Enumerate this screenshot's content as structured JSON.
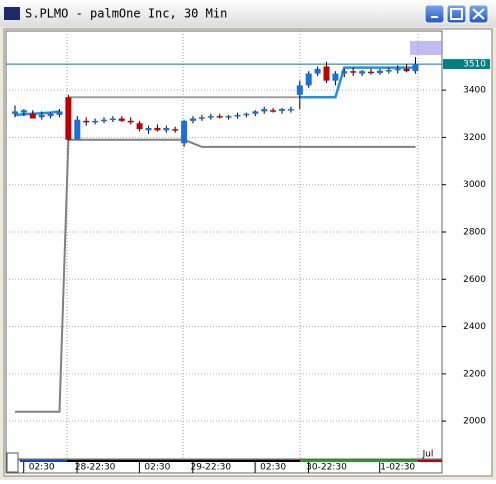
{
  "chart_data": {
    "type": "candlestick",
    "title": "S.PLMO - palmOne Inc, 30 Min",
    "categories": [
      null,
      null,
      null,
      "02:30",
      null,
      null,
      null,
      null,
      null,
      "28-22:30",
      null,
      null,
      null,
      null,
      null,
      null,
      "02:30",
      null,
      null,
      null,
      null,
      null,
      "29-22:30",
      null,
      null,
      null,
      null,
      null,
      null,
      "02:30",
      null,
      null,
      null,
      null,
      null,
      "30-22:30",
      null,
      null,
      null,
      null,
      null,
      null,
      null,
      "1-02:30",
      null,
      null
    ],
    "x_annotation": "Jul",
    "open": [
      3300,
      3305,
      3300,
      3285,
      3290,
      3295,
      3370,
      3190,
      3270,
      3265,
      3270,
      3275,
      3280,
      3270,
      3260,
      3230,
      3240,
      3230,
      3235,
      3175,
      3270,
      3280,
      3285,
      3290,
      3285,
      3290,
      3295,
      3300,
      3310,
      3315,
      3312,
      3315,
      3380,
      3420,
      3470,
      3500,
      3440,
      3470,
      3480,
      3470,
      3478,
      3472,
      3480,
      3485,
      3490,
      3480
    ],
    "high": [
      3335,
      3320,
      3315,
      3310,
      3305,
      3320,
      3380,
      3290,
      3285,
      3280,
      3285,
      3290,
      3290,
      3285,
      3270,
      3250,
      3255,
      3250,
      3245,
      3275,
      3290,
      3295,
      3300,
      3300,
      3295,
      3305,
      3305,
      3315,
      3330,
      3325,
      3325,
      3330,
      3440,
      3480,
      3500,
      3520,
      3480,
      3490,
      3495,
      3485,
      3490,
      3490,
      3495,
      3505,
      3510,
      3540
    ],
    "low": [
      3285,
      3290,
      3280,
      3275,
      3280,
      3285,
      3185,
      3190,
      3250,
      3255,
      3260,
      3265,
      3265,
      3255,
      3225,
      3215,
      3225,
      3220,
      3220,
      3160,
      3260,
      3270,
      3275,
      3280,
      3275,
      3280,
      3285,
      3290,
      3300,
      3305,
      3300,
      3305,
      3320,
      3410,
      3460,
      3430,
      3420,
      3455,
      3460,
      3460,
      3465,
      3465,
      3470,
      3470,
      3475,
      3470
    ],
    "close": [
      3310,
      3315,
      3280,
      3295,
      3300,
      3310,
      3190,
      3275,
      3265,
      3270,
      3275,
      3280,
      3270,
      3265,
      3235,
      3240,
      3230,
      3240,
      3230,
      3270,
      3280,
      3285,
      3290,
      3285,
      3290,
      3295,
      3300,
      3310,
      3320,
      3310,
      3320,
      3320,
      3420,
      3470,
      3490,
      3440,
      3470,
      3480,
      3475,
      3480,
      3472,
      3482,
      3485,
      3490,
      3480,
      3510
    ],
    "up_color": "#1c6fd6",
    "down_color": "#c00000",
    "lines": [
      {
        "color": "#1e90e8",
        "values": [
          3295,
          3298,
          3300,
          3302,
          3305,
          3310,
          null,
          null,
          null,
          null,
          null,
          null,
          null,
          null,
          null,
          null,
          null,
          null,
          null,
          null,
          null,
          null,
          null,
          null,
          null,
          null,
          null,
          null,
          null,
          null,
          null,
          null,
          3370,
          3370,
          3370,
          3370,
          3370,
          3495,
          3495,
          3495,
          3495,
          3495,
          3495,
          3495,
          3495,
          3495
        ]
      },
      {
        "color": "#808080",
        "values": [
          2040,
          2040,
          2040,
          2040,
          2040,
          2040,
          3190,
          3190,
          3190,
          3190,
          3190,
          3190,
          3190,
          3190,
          3190,
          3190,
          3190,
          3190,
          3190,
          3190,
          3175,
          3160,
          3160,
          3160,
          3160,
          3160,
          3160,
          3160,
          3160,
          3160,
          3160,
          3160,
          3160,
          3160,
          3160,
          3160,
          3160,
          3160,
          3160,
          3160,
          3160,
          3160,
          3160,
          3160,
          3160,
          3160
        ]
      },
      {
        "color": "#a0a0a0",
        "values": [
          null,
          null,
          null,
          null,
          null,
          null,
          3370,
          3370,
          3370,
          3370,
          3370,
          3370,
          3370,
          3370,
          3370,
          3370,
          3370,
          3370,
          3370,
          3370,
          3370,
          3370,
          3370,
          3370,
          3370,
          3370,
          3370,
          3370,
          3370,
          3370,
          3370,
          3370,
          3370,
          null,
          null,
          null,
          null,
          null,
          null,
          null,
          null,
          null,
          null,
          null,
          null,
          null
        ]
      }
    ],
    "last_value": 3510,
    "last_color": "#008080",
    "ylim": [
      1840,
      3650
    ],
    "yticks": [
      2000,
      2200,
      2400,
      2600,
      2800,
      3000,
      3200,
      3400
    ],
    "grid": true
  }
}
